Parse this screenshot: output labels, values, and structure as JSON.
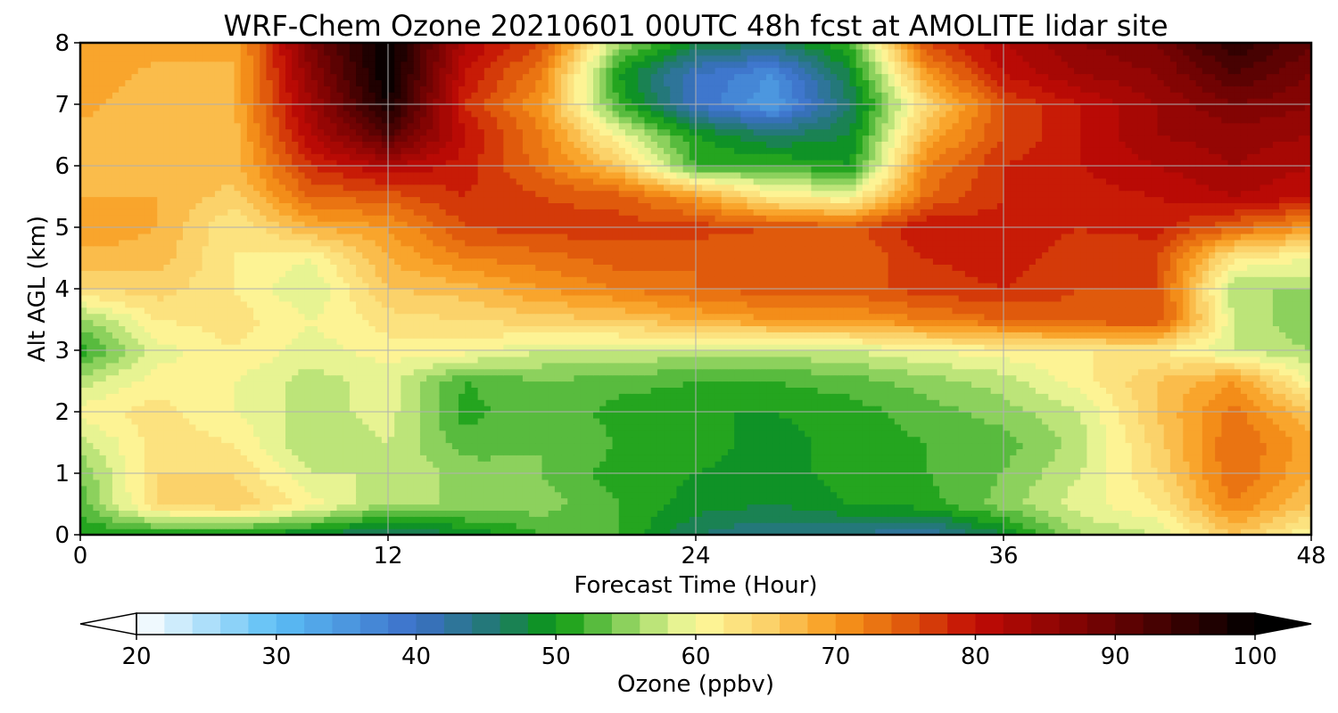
{
  "chart_data": {
    "type": "heatmap",
    "title": "WRF-Chem Ozone  20210601 00UTC 48h fcst at AMOLITE lidar site",
    "xlabel": "Forecast Time (Hour)",
    "ylabel": "Alt AGL (km)",
    "xlim": [
      0,
      48
    ],
    "ylim": [
      0,
      8
    ],
    "xticks": [
      0,
      12,
      24,
      36,
      48
    ],
    "yticks": [
      0,
      1,
      2,
      3,
      4,
      5,
      6,
      7,
      8
    ],
    "grid": true,
    "x": [
      0,
      3,
      6,
      9,
      12,
      15,
      18,
      21,
      24,
      27,
      30,
      33,
      36,
      39,
      42,
      45,
      48
    ],
    "y": [
      0,
      0.5,
      1,
      1.5,
      2,
      2.5,
      3,
      3.5,
      4,
      4.5,
      5,
      5.5,
      6,
      6.5,
      7,
      7.5,
      8
    ],
    "z": [
      [
        50,
        50,
        50,
        48,
        45,
        48,
        52,
        52,
        46,
        44,
        44,
        42,
        48,
        56,
        58,
        66,
        60
      ],
      [
        53,
        64,
        66,
        61,
        56,
        56,
        55,
        52,
        49,
        48,
        50,
        51,
        55,
        59,
        62,
        72,
        66
      ],
      [
        54,
        64,
        64,
        58,
        58,
        55,
        54,
        51,
        50,
        49,
        51,
        52,
        54,
        58,
        64,
        74,
        68
      ],
      [
        57,
        63,
        62,
        56,
        58,
        53,
        54,
        52,
        51,
        49,
        51,
        52,
        53,
        57,
        65,
        74,
        69
      ],
      [
        61,
        63,
        60,
        57,
        59,
        51,
        54,
        51,
        50,
        50,
        51,
        53,
        55,
        58,
        66,
        73,
        66
      ],
      [
        57,
        61,
        60,
        57,
        59,
        52,
        54,
        53,
        52,
        52,
        53,
        55,
        57,
        61,
        66,
        70,
        60
      ],
      [
        51,
        59,
        62,
        59,
        61,
        61,
        58,
        58,
        57,
        57,
        58,
        60,
        61,
        62,
        62,
        58,
        56
      ],
      [
        55,
        62,
        63,
        60,
        63,
        64,
        65,
        66,
        68,
        70,
        70,
        72,
        74,
        75,
        76,
        58,
        54
      ],
      [
        64,
        65,
        62,
        58,
        66,
        67,
        70,
        72,
        74,
        75,
        75,
        77,
        78,
        76,
        76,
        56,
        56
      ],
      [
        67,
        67,
        62,
        60,
        68,
        72,
        73,
        75,
        74,
        74,
        74,
        78,
        79,
        77,
        76,
        62,
        60
      ],
      [
        70,
        68,
        62,
        68,
        70,
        76,
        77,
        77,
        77,
        76,
        75,
        80,
        79,
        78,
        79,
        74,
        70
      ],
      [
        68,
        68,
        65,
        74,
        75,
        78,
        76,
        75,
        70,
        62,
        60,
        74,
        78,
        79,
        80,
        82,
        80
      ],
      [
        66,
        68,
        67,
        78,
        82,
        79,
        73,
        66,
        52,
        52,
        50,
        72,
        78,
        80,
        82,
        84,
        82
      ],
      [
        67,
        66,
        67,
        82,
        92,
        80,
        72,
        60,
        50,
        46,
        48,
        68,
        76,
        80,
        84,
        85,
        84
      ],
      [
        69,
        66,
        68,
        84,
        98,
        78,
        70,
        52,
        40,
        34,
        46,
        64,
        76,
        80,
        84,
        88,
        86
      ],
      [
        70,
        67,
        68,
        86,
        100,
        80,
        72,
        50,
        40,
        36,
        48,
        70,
        80,
        84,
        86,
        92,
        88
      ],
      [
        70,
        70,
        68,
        88,
        100,
        82,
        76,
        56,
        48,
        46,
        52,
        76,
        82,
        86,
        88,
        96,
        90
      ]
    ],
    "colorbar": {
      "label": "Ozone  (ppbv)",
      "min": 20,
      "max": 100,
      "ticks": [
        20,
        30,
        40,
        50,
        60,
        70,
        80,
        90,
        100
      ],
      "extend": "both",
      "color_stops": [
        {
          "value": 20,
          "color": "#ffffff"
        },
        {
          "value": 30,
          "color": "#5bbef5"
        },
        {
          "value": 40,
          "color": "#3c6fc8"
        },
        {
          "value": 46,
          "color": "#1f7a6a"
        },
        {
          "value": 50,
          "color": "#0a9a0f"
        },
        {
          "value": 56,
          "color": "#a6dc6c"
        },
        {
          "value": 60,
          "color": "#fdfb9e"
        },
        {
          "value": 65,
          "color": "#fbd26a"
        },
        {
          "value": 70,
          "color": "#f89a1c"
        },
        {
          "value": 75,
          "color": "#e05a0c"
        },
        {
          "value": 80,
          "color": "#c20b05"
        },
        {
          "value": 88,
          "color": "#7a0303"
        },
        {
          "value": 100,
          "color": "#000000"
        }
      ]
    }
  }
}
